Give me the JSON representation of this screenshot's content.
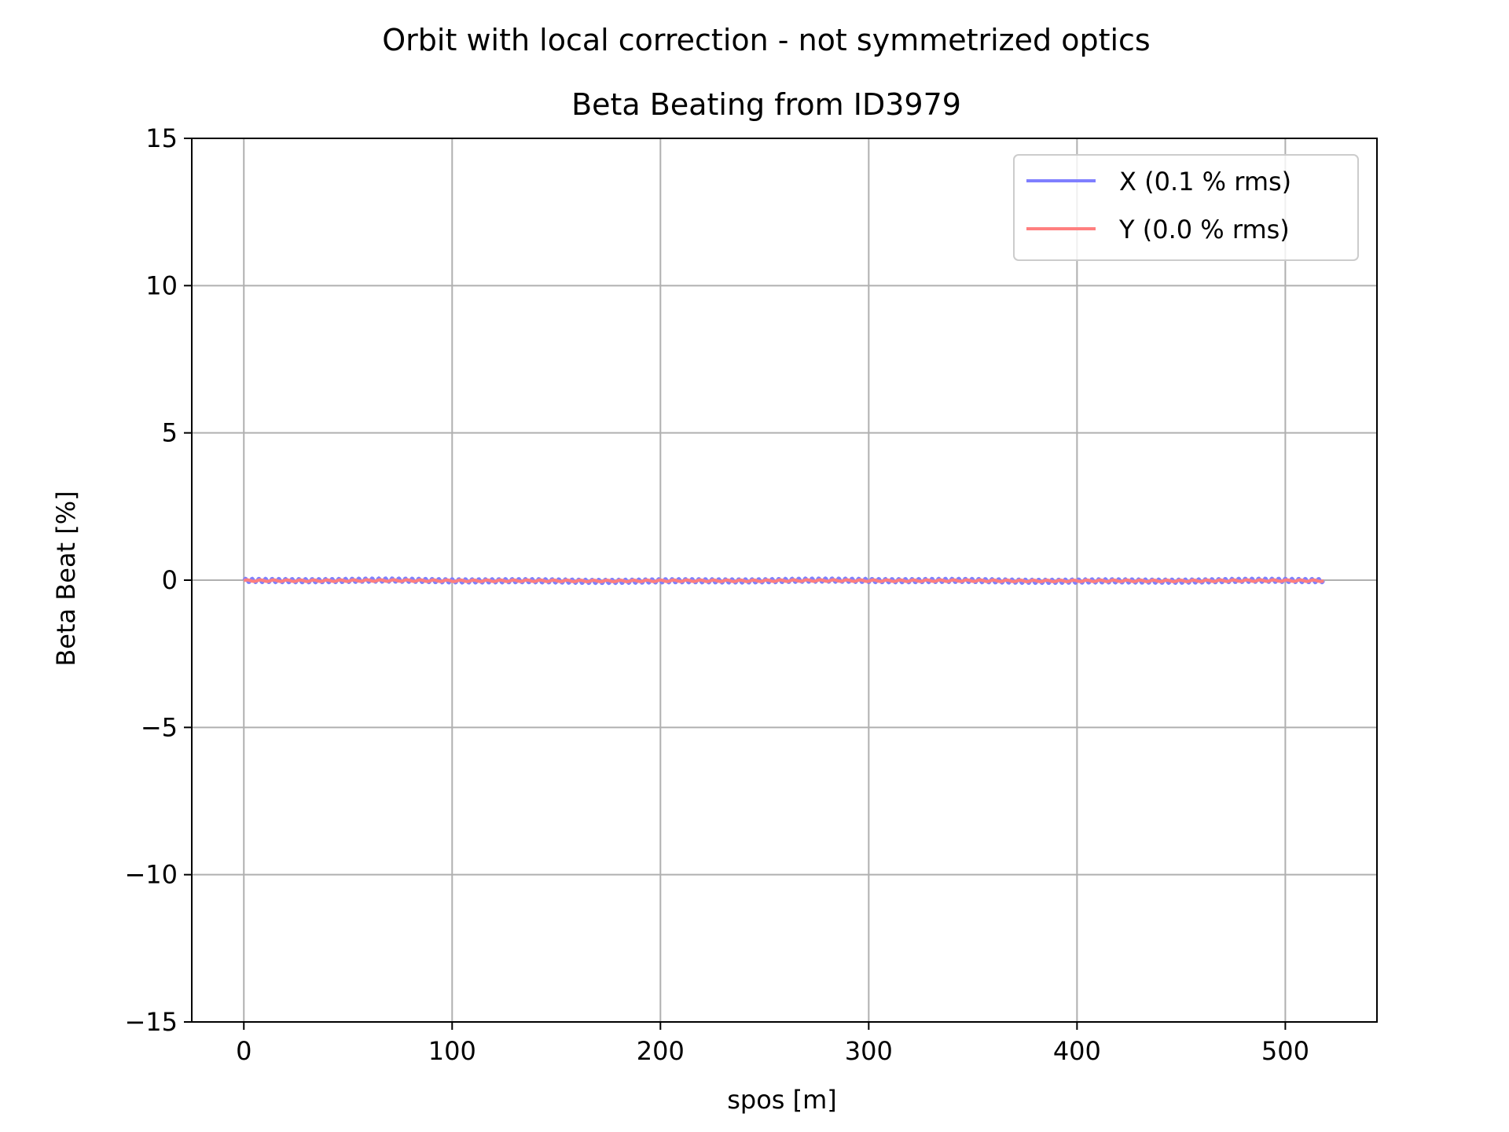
{
  "chart_data": {
    "type": "line",
    "suptitle": "Orbit with local correction - not symmetrized optics",
    "title": "Beta Beating from ID3979",
    "xlabel": "spos [m]",
    "ylabel": "Beta Beat [%]",
    "xlim": [
      -25,
      544
    ],
    "ylim": [
      -15,
      15
    ],
    "x_ticks": [
      0,
      100,
      200,
      300,
      400,
      500
    ],
    "x_tick_labels": [
      "0",
      "100",
      "200",
      "300",
      "400",
      "500"
    ],
    "y_ticks": [
      -15,
      -10,
      -5,
      0,
      5,
      10,
      15
    ],
    "y_tick_labels": [
      "−15",
      "−10",
      "−5",
      "0",
      "5",
      "10",
      "15"
    ],
    "grid": true,
    "legend": {
      "placement": "top-right"
    },
    "series": [
      {
        "name": "X (0.1 % rms)",
        "color": "#7f7fff",
        "x_start": 0,
        "x_end": 518.4,
        "cell_length": 19.2,
        "periods_per_cell": 6,
        "amplitude": 0.09,
        "values": []
      },
      {
        "name": "Y (0.0 % rms)",
        "color": "#ff7f7f",
        "x_start": 0,
        "x_end": 518.4,
        "cell_length": 19.2,
        "periods_per_cell": 3,
        "amplitude": 0.03,
        "values": []
      }
    ]
  }
}
